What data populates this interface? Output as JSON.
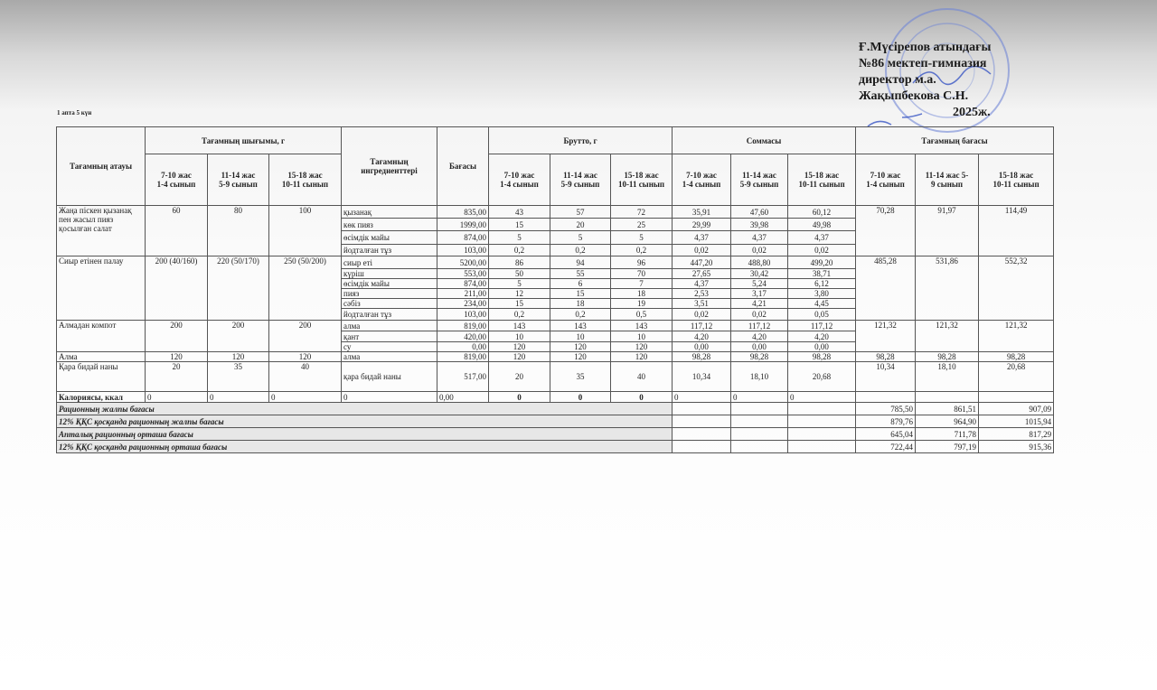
{
  "approval": {
    "lines": [
      "Ғ.Мүсірепов атындағы",
      "№86 мектеп-гимназия",
      "директор м.а.",
      "Жақыпбекова С.Н.",
      "2025ж."
    ]
  },
  "week_label": "1 апта 5 күн",
  "table": {
    "headers": {
      "dish": "Тағамның атауы",
      "output": "Тағамның шығымы, г",
      "ingredients": "Тағамның ингредиенттері",
      "price": "Бағасы",
      "brutto": "Брутто, г",
      "sum": "Соммасы",
      "cost": "Тағамның бағасы",
      "age_columns": {
        "output": [
          [
            "7-10 жас",
            "1-4 сынып"
          ],
          [
            "11-14 жас",
            "5-9 сынып"
          ],
          [
            "15-18 жас",
            "10-11 сынып"
          ]
        ],
        "brutto": [
          [
            "7-10 жас",
            "1-4 сынып"
          ],
          [
            "11-14 жас",
            "5-9 сынып"
          ],
          [
            "15-18 жас",
            "10-11 сынып"
          ]
        ],
        "sum": [
          [
            "7-10 жас",
            "1-4 сынып"
          ],
          [
            "11-14 жас",
            "5-9 сынып"
          ],
          [
            "15-18 жас",
            "10-11 сынып"
          ]
        ],
        "cost": [
          [
            "7-10 жас",
            "1-4 сынып"
          ],
          [
            "11-14 жас 5-",
            "9 сынып"
          ],
          [
            "15-18 жас",
            "10-11 сынып"
          ]
        ]
      }
    },
    "dishes": [
      {
        "name": "Жаңа піскен қызанақ пен жасыл пияз қосылған салат",
        "output": [
          "60",
          "80",
          "100"
        ],
        "cost": [
          "70,28",
          "91,97",
          "114,49"
        ],
        "ingredients": [
          {
            "name": "қызанақ",
            "price": "835,00",
            "brutto": [
              "43",
              "57",
              "72"
            ],
            "sum": [
              "35,91",
              "47,60",
              "60,12"
            ]
          },
          {
            "name": "көк пияз",
            "price": "1999,00",
            "brutto": [
              "15",
              "20",
              "25"
            ],
            "sum": [
              "29,99",
              "39,98",
              "49,98"
            ]
          },
          {
            "name": "өсімдік майы",
            "price": "874,00",
            "brutto": [
              "5",
              "5",
              "5"
            ],
            "sum": [
              "4,37",
              "4,37",
              "4,37"
            ]
          },
          {
            "name": "йодталған тұз",
            "price": "103,00",
            "brutto": [
              "0,2",
              "0,2",
              "0,2"
            ],
            "sum": [
              "0,02",
              "0,02",
              "0,02"
            ]
          }
        ]
      },
      {
        "name": "Сиыр етінен палау",
        "output": [
          "200 (40/160)",
          "220 (50/170)",
          "250 (50/200)"
        ],
        "cost": [
          "485,28",
          "531,86",
          "552,32"
        ],
        "ingredients": [
          {
            "name": "сиыр еті",
            "price": "5200,00",
            "brutto": [
              "86",
              "94",
              "96"
            ],
            "sum": [
              "447,20",
              "488,80",
              "499,20"
            ]
          },
          {
            "name": "күріш",
            "price": "553,00",
            "brutto": [
              "50",
              "55",
              "70"
            ],
            "sum": [
              "27,65",
              "30,42",
              "38,71"
            ]
          },
          {
            "name": "өсімдік майы",
            "price": "874,00",
            "brutto": [
              "5",
              "6",
              "7"
            ],
            "sum": [
              "4,37",
              "5,24",
              "6,12"
            ]
          },
          {
            "name": "пияз",
            "price": "211,00",
            "brutto": [
              "12",
              "15",
              "18"
            ],
            "sum": [
              "2,53",
              "3,17",
              "3,80"
            ]
          },
          {
            "name": "сәбіз",
            "price": "234,00",
            "brutto": [
              "15",
              "18",
              "19"
            ],
            "sum": [
              "3,51",
              "4,21",
              "4,45"
            ]
          },
          {
            "name": "йодталған тұз",
            "price": "103,00",
            "brutto": [
              "0,2",
              "0,2",
              "0,5"
            ],
            "sum": [
              "0,02",
              "0,02",
              "0,05"
            ]
          }
        ]
      },
      {
        "name": "Алмадан компот",
        "output": [
          "200",
          "200",
          "200"
        ],
        "cost": [
          "121,32",
          "121,32",
          "121,32"
        ],
        "ingredients": [
          {
            "name": "алма",
            "price": "819,00",
            "brutto": [
              "143",
              "143",
              "143"
            ],
            "sum": [
              "117,12",
              "117,12",
              "117,12"
            ]
          },
          {
            "name": "қант",
            "price": "420,00",
            "brutto": [
              "10",
              "10",
              "10"
            ],
            "sum": [
              "4,20",
              "4,20",
              "4,20"
            ]
          },
          {
            "name": "су",
            "price": "0,00",
            "brutto": [
              "120",
              "120",
              "120"
            ],
            "sum": [
              "0,00",
              "0,00",
              "0,00"
            ]
          }
        ]
      },
      {
        "name": "Алма",
        "output": [
          "120",
          "120",
          "120"
        ],
        "cost": [
          "98,28",
          "98,28",
          "98,28"
        ],
        "ingredients": [
          {
            "name": "алма",
            "price": "819,00",
            "brutto": [
              "120",
              "120",
              "120"
            ],
            "sum": [
              "98,28",
              "98,28",
              "98,28"
            ]
          }
        ]
      },
      {
        "name": "Қара бидай наны",
        "output": [
          "20",
          "35",
          "40"
        ],
        "cost": [
          "10,34",
          "18,10",
          "20,68"
        ],
        "ingredients": [
          {
            "name": "қара бидай наны",
            "price": "517,00",
            "brutto": [
              "20",
              "35",
              "40"
            ],
            "sum": [
              "10,34",
              "18,10",
              "20,68"
            ]
          }
        ]
      }
    ],
    "calories": {
      "label": "Калориясы, ккал",
      "output": [
        "0",
        "0",
        "0"
      ],
      "ingredient": "0",
      "price": "0,00",
      "brutto": [
        "0",
        "0",
        "0"
      ],
      "sum": [
        "0",
        "0",
        "0"
      ]
    },
    "summary": [
      {
        "label": "Рационның жалпы бағасы",
        "values": [
          "785,50",
          "861,51",
          "907,09"
        ]
      },
      {
        "label": "12% ҚҚС қосқанда рационның жалпы бағасы",
        "values": [
          "879,76",
          "964,90",
          "1015,94"
        ]
      },
      {
        "label": "Апталық рационның орташа бағасы",
        "values": [
          "645,04",
          "711,78",
          "817,29"
        ]
      },
      {
        "label": "12% ҚҚС қосқанда рационның орташа бағасы",
        "values": [
          "722,44",
          "797,19",
          "915,36"
        ]
      }
    ]
  }
}
